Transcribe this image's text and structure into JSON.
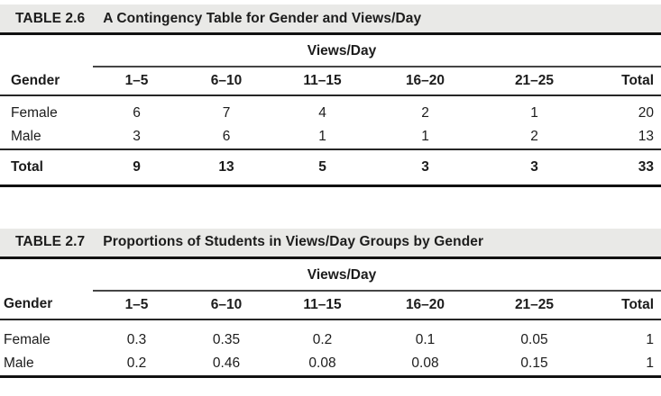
{
  "colors": {
    "band_background": "#e9e9e7",
    "heavy_rule": "#111111",
    "light_rule": "#454545",
    "text": "#1c1c1c"
  },
  "tables": [
    {
      "label": "TABLE 2.6",
      "title": "A Contingency Table for Gender and Views/Day",
      "spanner": "Views/Day",
      "row_header": "Gender",
      "columns": [
        "1–5",
        "6–10",
        "11–15",
        "16–20",
        "21–25",
        "Total"
      ],
      "rows": [
        {
          "name": "Female",
          "values": [
            "6",
            "7",
            "4",
            "2",
            "1",
            "20"
          ]
        },
        {
          "name": "Male",
          "values": [
            "3",
            "6",
            "1",
            "1",
            "2",
            "13"
          ]
        }
      ],
      "total_row": {
        "name": "Total",
        "values": [
          "9",
          "13",
          "5",
          "3",
          "3",
          "33"
        ]
      }
    },
    {
      "label": "TABLE 2.7",
      "title": "Proportions of Students in Views/Day Groups by Gender",
      "spanner": "Views/Day",
      "row_header": "Gender",
      "columns": [
        "1–5",
        "6–10",
        "11–15",
        "16–20",
        "21–25",
        "Total"
      ],
      "rows": [
        {
          "name": "Female",
          "values": [
            "0.3",
            "0.35",
            "0.2",
            "0.1",
            "0.05",
            "1"
          ]
        },
        {
          "name": "Male",
          "values": [
            "0.2",
            "0.46",
            "0.08",
            "0.08",
            "0.15",
            "1"
          ]
        }
      ]
    }
  ]
}
